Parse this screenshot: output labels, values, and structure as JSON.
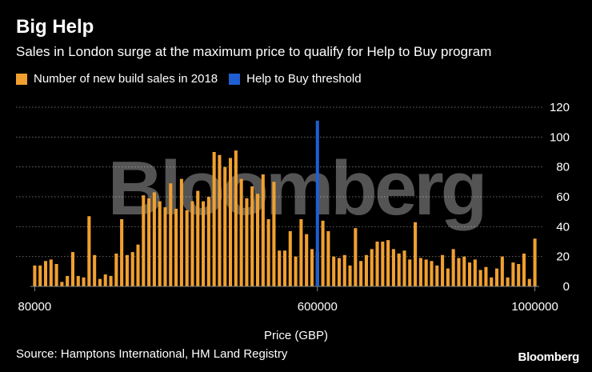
{
  "header": {
    "title": "Big Help",
    "subtitle": "Sales in London surge at the maximum price to qualify for Help to Buy program"
  },
  "footer": {
    "source": "Source: Hamptons International, HM Land Registry",
    "brand": "Bloomberg"
  },
  "watermark": "Bloomberg",
  "colors": {
    "bars": "#f0a030",
    "threshold": "#1f5fd1",
    "grid": "#6a6a6a",
    "background": "#000000"
  },
  "chart_data": {
    "type": "bar",
    "title": "Big Help",
    "xlabel": "Price (GBP)",
    "ylabel": "",
    "ylim": [
      0,
      120
    ],
    "yticks": [
      0,
      20,
      40,
      60,
      80,
      100,
      120
    ],
    "xticks": [
      {
        "index": 0,
        "label": "80000"
      },
      {
        "index": 52,
        "label": "600000"
      },
      {
        "index": 92,
        "label": "1000000"
      }
    ],
    "legend": [
      {
        "label": "Number of new build sales in 2018",
        "color": "#f0a030"
      },
      {
        "label": "Help to Buy threshold",
        "color": "#1f5fd1"
      }
    ],
    "series": [
      {
        "name": "Number of new build sales in 2018",
        "values": [
          14,
          14,
          17,
          18,
          15,
          3,
          7,
          23,
          7,
          6,
          47,
          21,
          5,
          8,
          7,
          22,
          45,
          21,
          23,
          28,
          61,
          59,
          63,
          57,
          53,
          69,
          52,
          72,
          51,
          57,
          64,
          57,
          60,
          90,
          88,
          80,
          86,
          91,
          72,
          59,
          67,
          62,
          75,
          45,
          70,
          24,
          24,
          37,
          20,
          45,
          35,
          25,
          23,
          44,
          37,
          20,
          19,
          21,
          14,
          39,
          17,
          21,
          25,
          30,
          30,
          31,
          25,
          22,
          24,
          18,
          43,
          19,
          18,
          17,
          14,
          21,
          12,
          25,
          19,
          20,
          16,
          18,
          11,
          13,
          6,
          12,
          20,
          6,
          16,
          15,
          22,
          5,
          32
        ]
      }
    ],
    "threshold": {
      "name": "Help to Buy threshold",
      "x": 600000,
      "index": 52.5,
      "value": 111
    }
  }
}
